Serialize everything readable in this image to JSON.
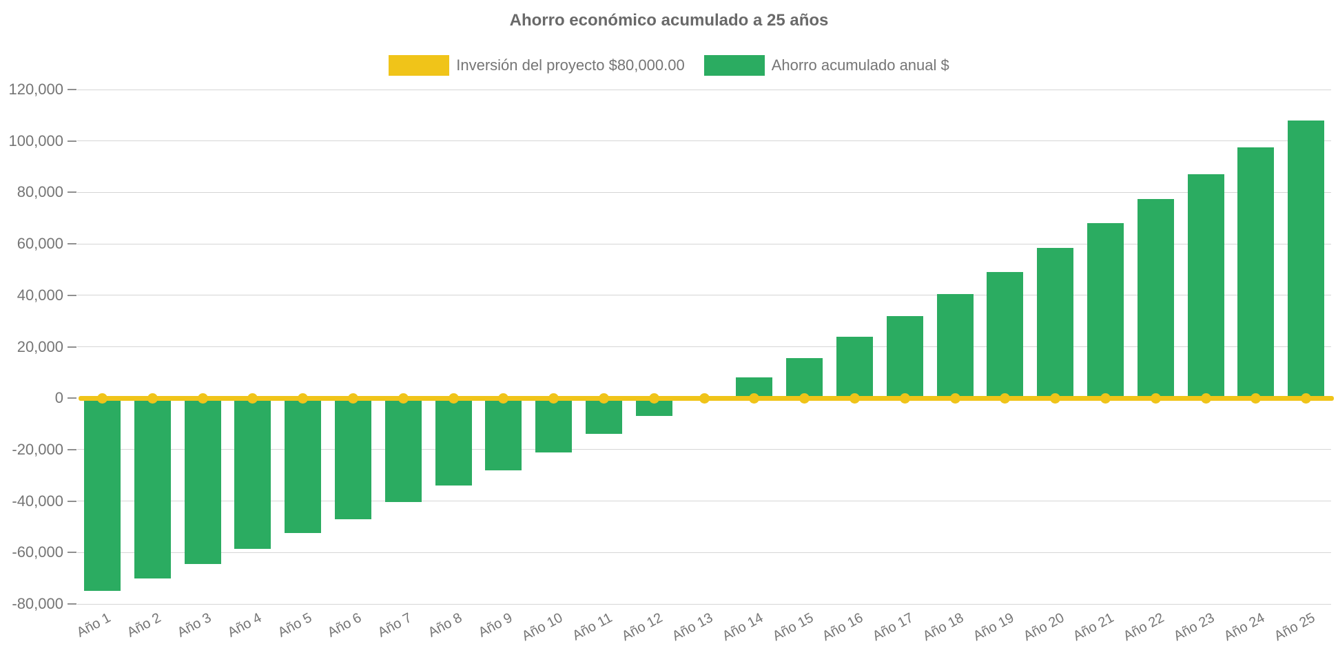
{
  "chart_data": {
    "type": "bar",
    "title": "Ahorro económico acumulado a 25 años",
    "categories": [
      "Año 1",
      "Año 2",
      "Año 3",
      "Año 4",
      "Año 5",
      "Año 6",
      "Año 7",
      "Año 8",
      "Año 9",
      "Año 10",
      "Año 11",
      "Año 12",
      "Año 13",
      "Año 14",
      "Año 15",
      "Año 16",
      "Año 17",
      "Año 18",
      "Año 19",
      "Año 20",
      "Año 21",
      "Año 22",
      "Año 23",
      "Año 24",
      "Año 25"
    ],
    "series": [
      {
        "name": "Inversión del proyecto $80,000.00",
        "type": "line",
        "color": "#F0C419",
        "constant_value": 0,
        "marker": "circle"
      },
      {
        "name": "Ahorro acumulado anual $",
        "type": "bar",
        "color": "#2BAC61",
        "values": [
          -75000,
          -70000,
          -64500,
          -58500,
          -52500,
          -47000,
          -40500,
          -34000,
          -28000,
          -21000,
          -14000,
          -7000,
          500,
          8000,
          15500,
          24000,
          32000,
          40500,
          49000,
          58500,
          68000,
          77500,
          87000,
          97500,
          108000
        ]
      }
    ],
    "xlabel": "",
    "ylabel": "",
    "ylim": [
      -80000,
      120000
    ],
    "ytick_step": 20000,
    "legend_position": "top-center",
    "grid": "faint-horizontal"
  },
  "colors": {
    "background": "#ffffff",
    "title_text": "#696969",
    "axis_text": "#757575",
    "tick_mark": "#8f8f8f",
    "investment_line": "#F0C419",
    "savings_bar": "#2BAC61"
  }
}
